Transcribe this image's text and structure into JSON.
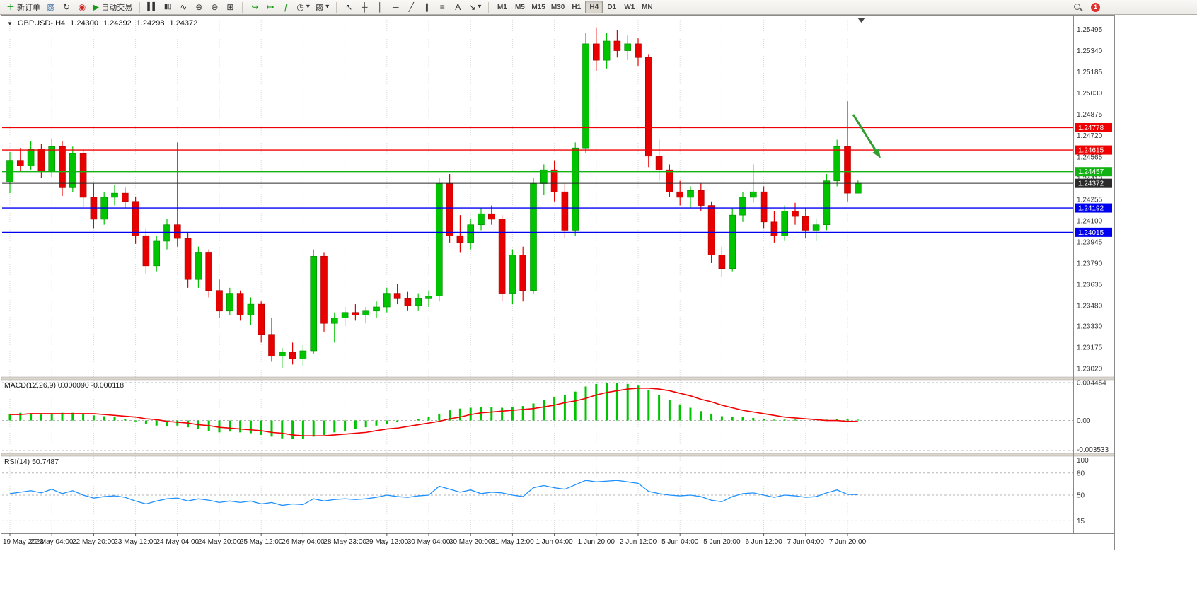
{
  "toolbar": {
    "new_order_label": "新订单",
    "autotrading_label": "自动交易",
    "timeframes": [
      "M1",
      "M5",
      "M15",
      "M30",
      "H1",
      "H4",
      "D1",
      "W1",
      "MN"
    ],
    "active_timeframe": "H4",
    "notification_badge": "1"
  },
  "icons": {
    "symbol_marker": "▼",
    "new_order": "＋",
    "new_chart": "▧",
    "refresh": "↻",
    "alerts": "◉",
    "autotrading": "▶",
    "bar_chart": "▌▌",
    "candlestick": "▮▯",
    "line_chart": "∿",
    "zoom_in": "⊕",
    "zoom_out": "⊖",
    "tile_windows": "⊞",
    "auto_scroll": "↪",
    "chart_shift": "↦",
    "indicators": "ƒ",
    "periods": "◷",
    "templates": "▨",
    "cursor": "↖",
    "crosshair": "┼",
    "vertical_line": "│",
    "horizontal_line": "─",
    "trendline": "╱",
    "channel": "∥",
    "fibonacci": "≡",
    "text": "A",
    "arrow_tool": "↘",
    "dropdown": "▾"
  },
  "chart_header": {
    "symbol": "GBPUSD-,H4",
    "open": "1.24300",
    "high": "1.24392",
    "low": "1.24298",
    "close": "1.24372"
  },
  "indicator_panels": {
    "macd": {
      "title": "MACD(12,26,9)",
      "value_macd": "0.000090",
      "value_signal": "-0.000118",
      "axis": [
        "0.004454",
        "0.00",
        "-0.003533"
      ]
    },
    "rsi": {
      "title": "RSI(14)",
      "value": "50.7487",
      "axis": [
        "100",
        "80",
        "50",
        "15"
      ]
    }
  },
  "price_levels": [
    {
      "label": "1.24778",
      "color": "#f00000",
      "current": false
    },
    {
      "label": "1.24615",
      "color": "#f00000",
      "current": false
    },
    {
      "label": "1.24457",
      "color": "#12b212",
      "current": false
    },
    {
      "label": "1.24372",
      "color": "#2b2b2b",
      "current": true
    },
    {
      "label": "1.24192",
      "color": "#0000f0",
      "current": false
    },
    {
      "label": "1.24015",
      "color": "#0000f0",
      "current": false
    }
  ],
  "annotation": {
    "type": "arrow",
    "color": "#2f9e2f"
  },
  "chart_data": {
    "type": "candlestick",
    "symbol": "GBPUSD",
    "timeframe": "H4",
    "ylim": [
      1.2299,
      1.2557
    ],
    "up_color": "#00c400",
    "down_color": "#e80000",
    "candles_per_label": 4,
    "price_axis_labels": [
      "1.25495",
      "1.25340",
      "1.25185",
      "1.25030",
      "1.24875",
      "1.24720",
      "1.24565",
      "1.24410",
      "1.24255",
      "1.24100",
      "1.23945",
      "1.23790",
      "1.23635",
      "1.23480",
      "1.23330",
      "1.23175",
      "1.23020"
    ],
    "time_labels": [
      "19 May 2023",
      "22 May 04:00",
      "22 May 20:00",
      "23 May 12:00",
      "24 May 04:00",
      "24 May 20:00",
      "25 May 12:00",
      "26 May 04:00",
      "28 May 23:00",
      "29 May 12:00",
      "30 May 04:00",
      "30 May 20:00",
      "31 May 12:00",
      "1 Jun 04:00",
      "1 Jun 20:00",
      "2 Jun 12:00",
      "5 Jun 04:00",
      "5 Jun 20:00",
      "6 Jun 12:00",
      "7 Jun 04:00",
      "7 Jun 20:00"
    ],
    "ohlc": [
      [
        1.2438,
        1.246,
        1.243,
        1.2454
      ],
      [
        1.2454,
        1.2463,
        1.2446,
        1.245
      ],
      [
        1.245,
        1.2468,
        1.2447,
        1.2462
      ],
      [
        1.2462,
        1.2466,
        1.2441,
        1.2446
      ],
      [
        1.2446,
        1.247,
        1.2442,
        1.2464
      ],
      [
        1.2464,
        1.2468,
        1.2428,
        1.2434
      ],
      [
        1.2434,
        1.2464,
        1.2431,
        1.2459
      ],
      [
        1.2459,
        1.2462,
        1.242,
        1.2427
      ],
      [
        1.2427,
        1.2437,
        1.2404,
        1.2411
      ],
      [
        1.2411,
        1.2431,
        1.2407,
        1.2427
      ],
      [
        1.2427,
        1.2436,
        1.2421,
        1.243
      ],
      [
        1.243,
        1.2434,
        1.2419,
        1.2424
      ],
      [
        1.2424,
        1.2427,
        1.2393,
        1.2399
      ],
      [
        1.2399,
        1.2404,
        1.2371,
        1.2377
      ],
      [
        1.2377,
        1.2399,
        1.2373,
        1.2395
      ],
      [
        1.2395,
        1.2411,
        1.2389,
        1.2407
      ],
      [
        1.2407,
        1.2467,
        1.2391,
        1.2397
      ],
      [
        1.2397,
        1.2401,
        1.2361,
        1.2367
      ],
      [
        1.2367,
        1.2391,
        1.2361,
        1.2387
      ],
      [
        1.2387,
        1.2389,
        1.2354,
        1.2359
      ],
      [
        1.2359,
        1.2367,
        1.2339,
        1.2344
      ],
      [
        1.2344,
        1.2361,
        1.2341,
        1.2357
      ],
      [
        1.2357,
        1.2359,
        1.2337,
        1.2341
      ],
      [
        1.2341,
        1.2354,
        1.2334,
        1.2349
      ],
      [
        1.2349,
        1.2351,
        1.2321,
        1.2327
      ],
      [
        1.2327,
        1.2339,
        1.2307,
        1.2311
      ],
      [
        1.2311,
        1.2317,
        1.2302,
        1.2314
      ],
      [
        1.2314,
        1.2321,
        1.2305,
        1.2309
      ],
      [
        1.2309,
        1.2319,
        1.2304,
        1.2315
      ],
      [
        1.2315,
        1.2389,
        1.2313,
        1.2384
      ],
      [
        1.2384,
        1.2387,
        1.2329,
        1.2335
      ],
      [
        1.2335,
        1.2343,
        1.2321,
        1.2339
      ],
      [
        1.2339,
        1.2347,
        1.2333,
        1.2343
      ],
      [
        1.2343,
        1.2349,
        1.2337,
        1.2341
      ],
      [
        1.2341,
        1.2347,
        1.2335,
        1.2344
      ],
      [
        1.2344,
        1.2351,
        1.2339,
        1.2347
      ],
      [
        1.2347,
        1.2361,
        1.2343,
        1.2357
      ],
      [
        1.2357,
        1.2364,
        1.2349,
        1.2353
      ],
      [
        1.2353,
        1.2358,
        1.2344,
        1.2348
      ],
      [
        1.2348,
        1.2357,
        1.2344,
        1.2353
      ],
      [
        1.2353,
        1.2359,
        1.2347,
        1.2355
      ],
      [
        1.2355,
        1.2441,
        1.2351,
        1.2437
      ],
      [
        1.2437,
        1.2444,
        1.2394,
        1.2399
      ],
      [
        1.2399,
        1.2414,
        1.2387,
        1.2394
      ],
      [
        1.2394,
        1.2411,
        1.2389,
        1.2407
      ],
      [
        1.2407,
        1.2419,
        1.2403,
        1.2415
      ],
      [
        1.2415,
        1.2421,
        1.2407,
        1.2411
      ],
      [
        1.2411,
        1.2414,
        1.2351,
        1.2357
      ],
      [
        1.2357,
        1.2389,
        1.2349,
        1.2385
      ],
      [
        1.2385,
        1.2391,
        1.2351,
        1.2359
      ],
      [
        1.2359,
        1.2441,
        1.2357,
        1.2437
      ],
      [
        1.2437,
        1.2451,
        1.2429,
        1.2447
      ],
      [
        1.2447,
        1.2454,
        1.2424,
        1.2431
      ],
      [
        1.2431,
        1.2437,
        1.2397,
        1.2403
      ],
      [
        1.2403,
        1.2467,
        1.2399,
        1.2463
      ],
      [
        1.2463,
        1.2547,
        1.2459,
        1.2539
      ],
      [
        1.2539,
        1.2551,
        1.2519,
        1.2527
      ],
      [
        1.2527,
        1.2547,
        1.2521,
        1.2541
      ],
      [
        1.2541,
        1.2549,
        1.2529,
        1.2534
      ],
      [
        1.2534,
        1.2545,
        1.2527,
        1.2539
      ],
      [
        1.2539,
        1.2543,
        1.2523,
        1.2529
      ],
      [
        1.2529,
        1.2531,
        1.2449,
        1.2457
      ],
      [
        1.2457,
        1.2469,
        1.2439,
        1.2447
      ],
      [
        1.2447,
        1.2451,
        1.2427,
        1.2431
      ],
      [
        1.2431,
        1.2439,
        1.2421,
        1.2427
      ],
      [
        1.2427,
        1.2435,
        1.2419,
        1.2432
      ],
      [
        1.2432,
        1.2437,
        1.2417,
        1.2421
      ],
      [
        1.2421,
        1.2424,
        1.2379,
        1.2385
      ],
      [
        1.2385,
        1.2391,
        1.2369,
        1.2375
      ],
      [
        1.2375,
        1.2419,
        1.2373,
        1.2414
      ],
      [
        1.2414,
        1.2431,
        1.2409,
        1.2427
      ],
      [
        1.2427,
        1.2451,
        1.2423,
        1.2431
      ],
      [
        1.2431,
        1.2435,
        1.2404,
        1.2409
      ],
      [
        1.2409,
        1.2417,
        1.2394,
        1.2399
      ],
      [
        1.2399,
        1.2421,
        1.2395,
        1.2417
      ],
      [
        1.2417,
        1.2423,
        1.2407,
        1.2413
      ],
      [
        1.2413,
        1.2419,
        1.2397,
        1.2403
      ],
      [
        1.2403,
        1.2411,
        1.2395,
        1.2407
      ],
      [
        1.2407,
        1.2444,
        1.2403,
        1.2439
      ],
      [
        1.2439,
        1.2469,
        1.2435,
        1.2464
      ],
      [
        1.2464,
        1.2497,
        1.2424,
        1.243
      ],
      [
        1.243,
        1.24392,
        1.24298,
        1.24372
      ]
    ],
    "macd": {
      "ylim": [
        -0.003533,
        0.004454
      ],
      "bar_color": "#00c400",
      "signal_color": "#f00000",
      "histogram": [
        0.0008,
        0.0009,
        0.0008,
        0.0007,
        0.0008,
        0.0009,
        0.0009,
        0.0008,
        0.0006,
        0.0005,
        0.0004,
        0.0002,
        -0.0001,
        -0.0004,
        -0.0006,
        -0.0007,
        -0.0006,
        -0.0008,
        -0.001,
        -0.0012,
        -0.0014,
        -0.0013,
        -0.0014,
        -0.0015,
        -0.0017,
        -0.0019,
        -0.0021,
        -0.0022,
        -0.0022,
        -0.0019,
        -0.0017,
        -0.0014,
        -0.0012,
        -0.001,
        -0.0008,
        -0.0006,
        -0.0004,
        -0.0002,
        0.0,
        0.0002,
        0.0004,
        0.0008,
        0.0012,
        0.0014,
        0.0015,
        0.0016,
        0.0016,
        0.0015,
        0.0016,
        0.0017,
        0.002,
        0.0024,
        0.0028,
        0.003,
        0.0034,
        0.004,
        0.0043,
        0.0044,
        0.0044,
        0.0043,
        0.0041,
        0.0036,
        0.003,
        0.0024,
        0.0019,
        0.0015,
        0.0011,
        0.0008,
        0.0005,
        0.0004,
        0.0004,
        0.0003,
        0.0002,
        0.0001,
        0.0001,
        0.0001,
        0.0,
        0.0,
        0.0001,
        0.0002,
        0.0002,
        9e-05
      ],
      "signal": [
        0.0007,
        0.0007,
        0.0008,
        0.0008,
        0.0008,
        0.0008,
        0.0008,
        0.0008,
        0.0008,
        0.0007,
        0.0006,
        0.0005,
        0.0004,
        0.0002,
        0.0001,
        -0.0001,
        -0.0002,
        -0.0003,
        -0.0005,
        -0.0006,
        -0.0008,
        -0.0009,
        -0.001,
        -0.0011,
        -0.0012,
        -0.0014,
        -0.0015,
        -0.0017,
        -0.0018,
        -0.0018,
        -0.0018,
        -0.0017,
        -0.0016,
        -0.0015,
        -0.0014,
        -0.0012,
        -0.001,
        -0.0009,
        -0.0007,
        -0.0005,
        -0.0003,
        -0.0001,
        0.0002,
        0.0004,
        0.0007,
        0.0009,
        0.001,
        0.0011,
        0.0012,
        0.0013,
        0.0014,
        0.0016,
        0.0018,
        0.0021,
        0.0023,
        0.0026,
        0.003,
        0.0033,
        0.0035,
        0.0037,
        0.0038,
        0.0038,
        0.0037,
        0.0035,
        0.0032,
        0.0029,
        0.0025,
        0.0022,
        0.0018,
        0.0015,
        0.0012,
        0.001,
        0.0008,
        0.0006,
        0.0004,
        0.0003,
        0.0002,
        0.0001,
        0.0,
        0.0,
        -0.0001,
        -0.000118
      ]
    },
    "rsi": {
      "line_color": "#1e90ff",
      "levels": [
        80,
        50,
        15
      ],
      "values": [
        52,
        54,
        56,
        53,
        58,
        52,
        56,
        50,
        46,
        48,
        49,
        47,
        42,
        38,
        42,
        45,
        46,
        42,
        45,
        43,
        40,
        42,
        40,
        42,
        38,
        40,
        36,
        38,
        37,
        45,
        42,
        44,
        45,
        44,
        45,
        47,
        50,
        48,
        47,
        49,
        50,
        62,
        58,
        54,
        57,
        52,
        54,
        53,
        50,
        48,
        60,
        63,
        60,
        58,
        64,
        70,
        68,
        69,
        70,
        68,
        66,
        55,
        52,
        50,
        49,
        50,
        48,
        43,
        41,
        48,
        52,
        53,
        50,
        47,
        50,
        49,
        47,
        48,
        53,
        57,
        51,
        50.75
      ]
    }
  }
}
